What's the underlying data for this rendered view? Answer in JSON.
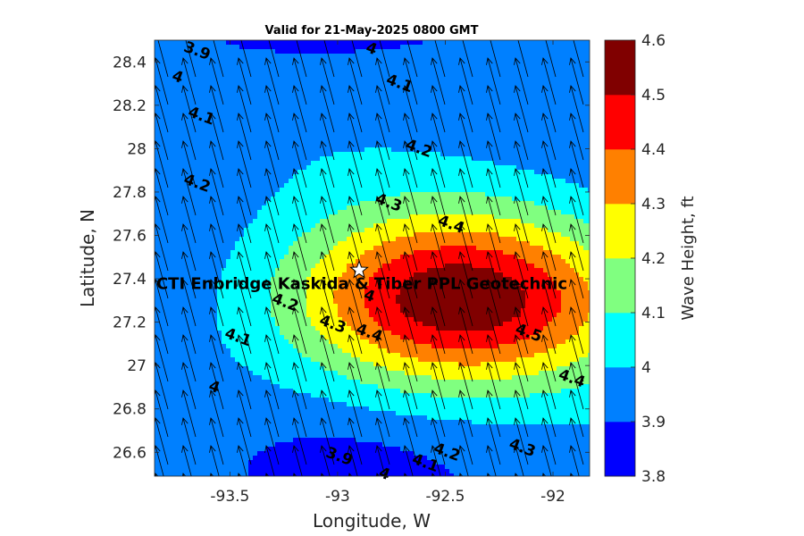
{
  "chart_data": {
    "type": "filled-contour",
    "title": "Valid for 21-May-2025 0800 GMT",
    "xlabel": "Longitude, W",
    "ylabel": "Latitude, N",
    "xlim": [
      -93.85,
      -91.83
    ],
    "ylim": [
      26.49,
      28.5
    ],
    "xticks": [
      -93.5,
      -93,
      -92.5,
      -92
    ],
    "xtick_labels": [
      "-93.5",
      "-93",
      "-92.5",
      "-92"
    ],
    "yticks": [
      26.6,
      26.8,
      27.0,
      27.2,
      27.4,
      27.6,
      27.8,
      28.0,
      28.2,
      28.4
    ],
    "ytick_labels": [
      "26.6",
      "26.8",
      "27",
      "27.2",
      "27.4",
      "27.6",
      "27.8",
      "28",
      "28.2",
      "28.4"
    ],
    "colorbar": {
      "label": "Wave Height, ft",
      "levels": [
        3.8,
        3.9,
        4.0,
        4.1,
        4.2,
        4.3,
        4.4,
        4.5,
        4.6
      ],
      "tick_labels": [
        "3.8",
        "3.9",
        "4",
        "4.1",
        "4.2",
        "4.3",
        "4.4",
        "4.5",
        "4.6"
      ],
      "colors": [
        "#0000ff",
        "#0080ff",
        "#00ffff",
        "#80ff80",
        "#ffff00",
        "#ff8000",
        "#ff0000",
        "#800000"
      ]
    },
    "wave_height_field": {
      "peak": {
        "lon": -92.45,
        "lat": 27.3,
        "value": 4.56
      },
      "minimum": {
        "lon": -93.1,
        "lat": 26.5,
        "value": 3.83
      }
    },
    "contour_labels": [
      {
        "text": "3.9",
        "lon": -93.66,
        "lat": 28.43
      },
      {
        "text": "4",
        "lon": -92.85,
        "lat": 28.44
      },
      {
        "text": "4",
        "lon": -93.75,
        "lat": 28.31
      },
      {
        "text": "4.1",
        "lon": -92.72,
        "lat": 28.28
      },
      {
        "text": "4.1",
        "lon": -93.64,
        "lat": 28.13
      },
      {
        "text": "4.2",
        "lon": -92.63,
        "lat": 27.98
      },
      {
        "text": "4.2",
        "lon": -93.66,
        "lat": 27.82
      },
      {
        "text": "4.3",
        "lon": -92.77,
        "lat": 27.73
      },
      {
        "text": "4.4",
        "lon": -92.48,
        "lat": 27.63
      },
      {
        "text": "4",
        "lon": -92.86,
        "lat": 27.3
      },
      {
        "text": "4.2",
        "lon": -93.25,
        "lat": 27.27
      },
      {
        "text": "4.3",
        "lon": -93.03,
        "lat": 27.17
      },
      {
        "text": "4.4",
        "lon": -92.86,
        "lat": 27.13
      },
      {
        "text": "4.5",
        "lon": -92.12,
        "lat": 27.13
      },
      {
        "text": "4.1",
        "lon": -93.47,
        "lat": 27.11
      },
      {
        "text": "4.4",
        "lon": -91.92,
        "lat": 26.92
      },
      {
        "text": "4",
        "lon": -93.58,
        "lat": 26.88
      },
      {
        "text": "4.3",
        "lon": -92.15,
        "lat": 26.6
      },
      {
        "text": "4.2",
        "lon": -92.5,
        "lat": 26.58
      },
      {
        "text": "4.1",
        "lon": -92.6,
        "lat": 26.53
      },
      {
        "text": "3.9",
        "lon": -93.0,
        "lat": 26.56
      },
      {
        "text": "4",
        "lon": -92.79,
        "lat": 26.48
      }
    ],
    "wave_direction_arrows": {
      "pointing": "north-northwest"
    },
    "site": {
      "label": "CTI Enbridge  Kaskida & Tiber PPL Geotechnic",
      "lon": -92.9,
      "lat": 27.44,
      "marker": "white star"
    }
  }
}
